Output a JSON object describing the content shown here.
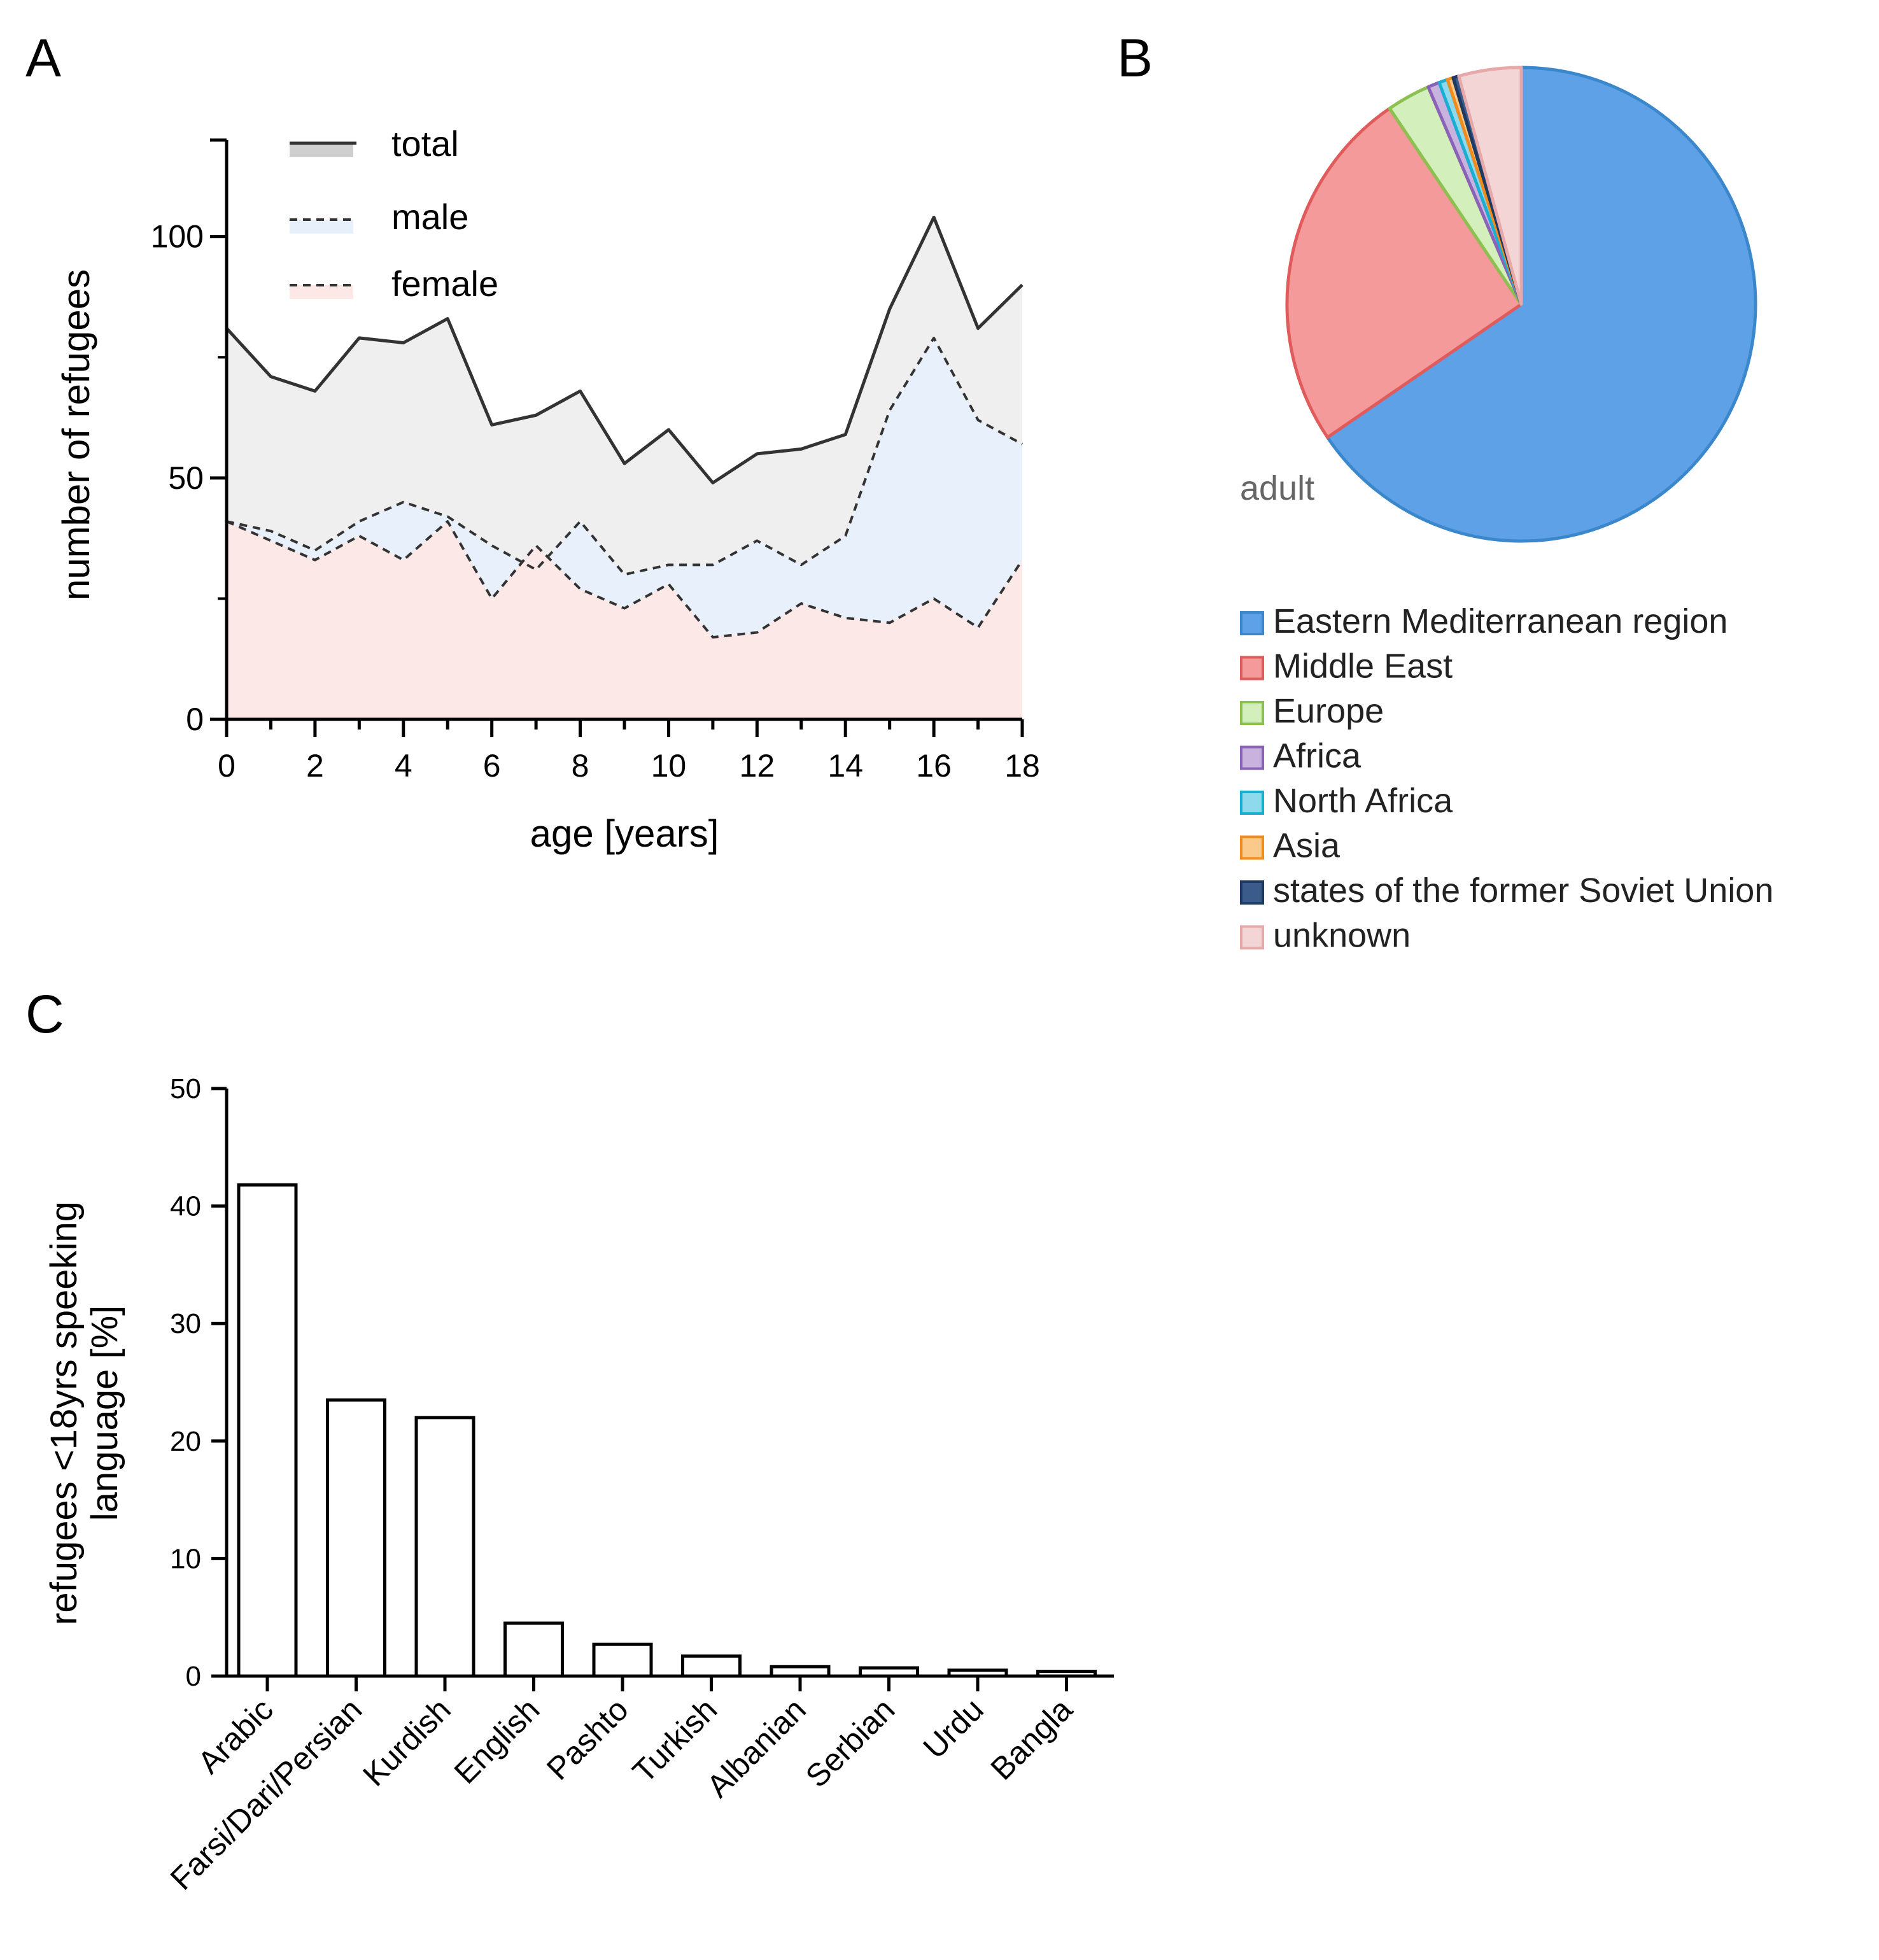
{
  "panels": {
    "a": "A",
    "b": "B",
    "c": "C"
  },
  "colors": {
    "total_fill": "#efefef",
    "male_fill": "#e8f0fb",
    "female_fill": "#fde8e8",
    "line": "#333333"
  },
  "chart_data": [
    {
      "id": "A",
      "type": "area",
      "x": [
        0,
        1,
        2,
        3,
        4,
        5,
        6,
        7,
        8,
        9,
        10,
        11,
        12,
        13,
        14,
        15,
        16,
        17,
        18
      ],
      "series": [
        {
          "name": "total",
          "style": "solid",
          "values": [
            81,
            71,
            68,
            79,
            78,
            83,
            61,
            63,
            68,
            53,
            60,
            49,
            55,
            56,
            59,
            85,
            104,
            81,
            90
          ]
        },
        {
          "name": "male",
          "style": "dashed",
          "values": [
            41,
            39,
            35,
            41,
            45,
            42,
            36,
            31,
            41,
            30,
            32,
            32,
            37,
            32,
            38,
            64,
            79,
            62,
            57
          ]
        },
        {
          "name": "female",
          "style": "dashed",
          "values": [
            41,
            37,
            33,
            38,
            33,
            41,
            25,
            36,
            27,
            23,
            28,
            17,
            18,
            24,
            21,
            20,
            25,
            19,
            33
          ]
        }
      ],
      "xlabel": "age [years]",
      "ylabel": "number of refugees",
      "xlim": [
        0,
        18
      ],
      "ylim": [
        0,
        120
      ],
      "xticks": [
        "0",
        "2",
        "4",
        "6",
        "8",
        "10",
        "12",
        "14",
        "16",
        "18"
      ],
      "yticks": [
        "0",
        "50",
        "100"
      ],
      "legend": [
        "total",
        "male",
        "female"
      ]
    },
    {
      "id": "B",
      "type": "pie",
      "label": "adult",
      "slices": [
        {
          "name": "Eastern Mediterranean region",
          "value": 65.5,
          "color": "#5ea1e6",
          "edge": "#3b87cc"
        },
        {
          "name": "Middle East",
          "value": 25.0,
          "color": "#f59a9a",
          "edge": "#e05c5c"
        },
        {
          "name": "Europe",
          "value": 3.0,
          "color": "#d3efbb",
          "edge": "#8cc152"
        },
        {
          "name": "Africa",
          "value": 0.8,
          "color": "#c9b3de",
          "edge": "#8a62b8"
        },
        {
          "name": "North Africa",
          "value": 0.6,
          "color": "#8ed9ec",
          "edge": "#1aaed3"
        },
        {
          "name": "Asia",
          "value": 0.4,
          "color": "#fbc98a",
          "edge": "#f08c1e"
        },
        {
          "name": "states of the former Soviet Union",
          "value": 0.4,
          "color": "#3b5b8a",
          "edge": "#1f3a63"
        },
        {
          "name": "unknown",
          "value": 4.3,
          "color": "#f4d5d5",
          "edge": "#e6a8a8"
        }
      ]
    },
    {
      "id": "C",
      "type": "bar",
      "categories": [
        "Arabic",
        "Farsi/Dari/Persian",
        "Kurdish",
        "English",
        "Pashto",
        "Turkish",
        "Albanian",
        "Serbian",
        "Urdu",
        "Bangla"
      ],
      "values": [
        41.8,
        23.5,
        22.0,
        4.5,
        2.7,
        1.7,
        0.8,
        0.7,
        0.5,
        0.4
      ],
      "ylabel_line1": "refugees <18yrs speeking",
      "ylabel_line2": "language [%]",
      "ylim": [
        0,
        50
      ],
      "yticks": [
        "0",
        "10",
        "20",
        "30",
        "40",
        "50"
      ]
    }
  ]
}
